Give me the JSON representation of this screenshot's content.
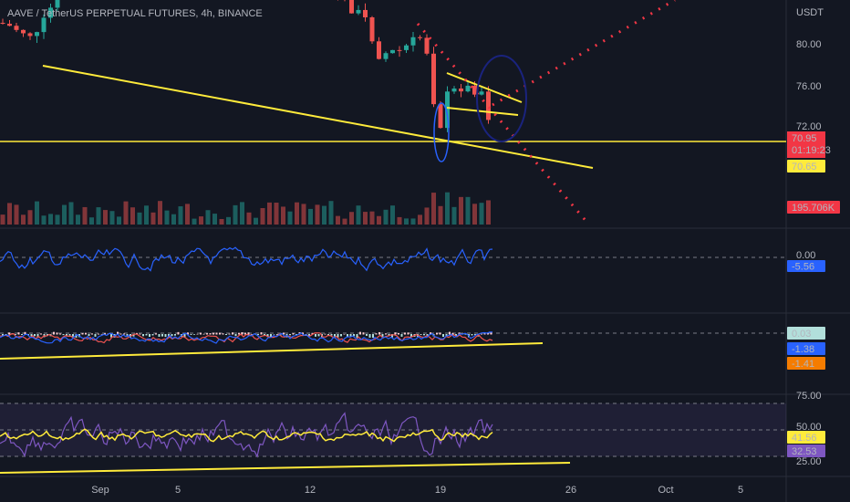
{
  "header": {
    "title": "AAVE / TetherUS PERPETUAL FUTURES, 4h, BINANCE"
  },
  "price_axis": {
    "unit": "USDT",
    "ticks": [
      "80.00",
      "76.00",
      "72.00"
    ]
  },
  "badges": {
    "last_price": "70.95",
    "countdown": "01:19:23",
    "level": "70.65",
    "volume": "195.706K"
  },
  "indicators": [
    {
      "zero": "0.00",
      "value": "-5.56"
    },
    {
      "values": [
        "0.03",
        "-1.38",
        "-1.41"
      ]
    },
    {
      "ticks": [
        "75.00",
        "50.00",
        "25.00"
      ],
      "values": [
        "41.56",
        "32.53"
      ]
    }
  ],
  "time_axis": [
    "Sep",
    "5",
    "12",
    "19",
    "26",
    "Oct",
    "5"
  ]
}
